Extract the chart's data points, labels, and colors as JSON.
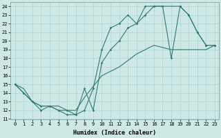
{
  "xlabel": "Humidex (Indice chaleur)",
  "xlim": [
    -0.5,
    23.5
  ],
  "ylim": [
    11,
    24.5
  ],
  "xticks": [
    0,
    1,
    2,
    3,
    4,
    5,
    6,
    7,
    8,
    9,
    10,
    11,
    12,
    13,
    14,
    15,
    16,
    17,
    18,
    19,
    20,
    21,
    22,
    23
  ],
  "yticks": [
    11,
    12,
    13,
    14,
    15,
    16,
    17,
    18,
    19,
    20,
    21,
    22,
    23,
    24
  ],
  "bg_color": "#cde8e5",
  "line_color": "#2e7d6e",
  "line1_x": [
    0,
    1,
    2,
    3,
    4,
    5,
    6,
    7,
    8,
    9,
    10,
    11,
    12,
    13,
    14,
    15,
    16,
    17,
    19,
    20,
    21,
    22,
    23
  ],
  "line1_y": [
    15,
    14,
    13,
    12,
    12.5,
    12,
    11.5,
    11.5,
    14.5,
    12,
    17.5,
    19,
    20,
    21.5,
    22,
    23,
    24,
    24,
    24,
    23,
    21,
    19.5,
    19.5
  ],
  "line2_x": [
    0,
    1,
    2,
    3,
    4,
    5,
    6,
    7,
    8,
    9,
    10,
    11,
    12,
    13,
    14,
    15,
    16,
    17,
    18,
    19,
    20,
    21,
    22,
    23
  ],
  "line2_y": [
    15,
    14,
    13,
    12.5,
    12.5,
    12,
    12,
    11.5,
    12,
    14.5,
    19,
    21.5,
    22,
    23,
    22,
    24,
    24,
    24,
    18,
    24,
    23,
    21,
    19.5,
    19.5
  ],
  "line3_x": [
    0,
    1,
    2,
    3,
    4,
    5,
    6,
    7,
    8,
    10,
    12,
    14,
    16,
    18,
    20,
    22,
    23
  ],
  "line3_y": [
    15,
    14.5,
    13,
    12.5,
    12.5,
    12.5,
    12,
    12,
    13.5,
    16,
    17,
    18.5,
    19.5,
    19,
    19,
    19,
    19.5
  ],
  "grid_color": "#aed4d0",
  "font_family": "monospace",
  "tick_fontsize": 5,
  "xlabel_fontsize": 6
}
